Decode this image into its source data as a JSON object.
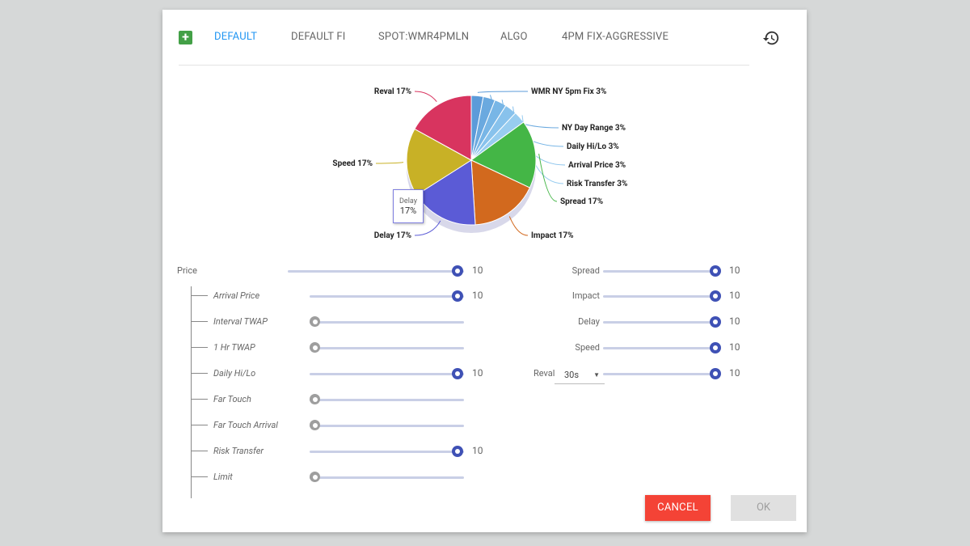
{
  "tabs": [
    {
      "label": "DEFAULT",
      "active": true
    },
    {
      "label": "DEFAULT FI",
      "active": false
    },
    {
      "label": "SPOT:WMR4PMLN",
      "active": false
    },
    {
      "label": "ALGO",
      "active": false
    },
    {
      "label": "4PM FIX-AGGRESSIVE",
      "active": false
    }
  ],
  "add_label": "+",
  "chart_data": {
    "type": "pie",
    "slices": [
      {
        "label": "WMR NY 5pm Fix 3%",
        "value": 3,
        "color": "#5b9bd9"
      },
      {
        "label": "NY Day Range 3%",
        "value": 3,
        "color": "#6aa9df"
      },
      {
        "label": "Daily Hi/Lo 3%",
        "value": 3,
        "color": "#78b6e6"
      },
      {
        "label": "Arrival Price 3%",
        "value": 3,
        "color": "#88c2ec"
      },
      {
        "label": "Risk Transfer 3%",
        "value": 3,
        "color": "#98cdf0"
      },
      {
        "label": "Spread 17%",
        "value": 17,
        "color": "#44b646"
      },
      {
        "label": "Impact 17%",
        "value": 17,
        "color": "#d2691e"
      },
      {
        "label": "Delay 17%",
        "value": 17,
        "color": "#5b5bd6"
      },
      {
        "label": "Speed 17%",
        "value": 17,
        "color": "#c8b126"
      },
      {
        "label": "Reval 17%",
        "value": 17,
        "color": "#d8345f"
      }
    ],
    "tooltip": {
      "name": "Delay",
      "value": "17%"
    }
  },
  "left_sliders": [
    {
      "label": "Price",
      "value": "10",
      "on": true,
      "italic": false
    },
    {
      "label": "Arrival Price",
      "value": "10",
      "on": true,
      "italic": true
    },
    {
      "label": "Interval TWAP",
      "value": "",
      "on": false,
      "italic": true
    },
    {
      "label": "1 Hr TWAP",
      "value": "",
      "on": false,
      "italic": true
    },
    {
      "label": "Daily Hi/Lo",
      "value": "10",
      "on": true,
      "italic": true
    },
    {
      "label": "Far Touch",
      "value": "",
      "on": false,
      "italic": true
    },
    {
      "label": "Far Touch Arrival",
      "value": "",
      "on": false,
      "italic": true
    },
    {
      "label": "Risk Transfer",
      "value": "10",
      "on": true,
      "italic": true
    },
    {
      "label": "Limit",
      "value": "",
      "on": false,
      "italic": true
    }
  ],
  "right_sliders": [
    {
      "label": "Spread",
      "value": "10"
    },
    {
      "label": "Impact",
      "value": "10"
    },
    {
      "label": "Delay",
      "value": "10"
    },
    {
      "label": "Speed",
      "value": "10"
    },
    {
      "label": "Reval",
      "value": "10"
    }
  ],
  "reval_select": {
    "value": "30s"
  },
  "buttons": {
    "cancel": "CANCEL",
    "ok": "OK"
  }
}
